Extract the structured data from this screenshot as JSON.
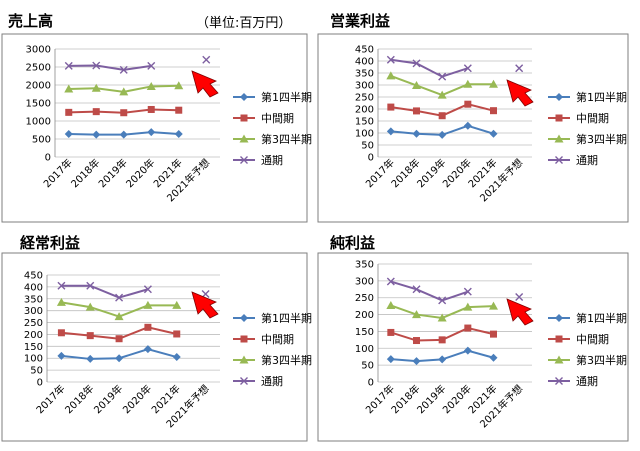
{
  "unit_label": "（単位:百万円）",
  "colors": {
    "q1": "#4a7ebb",
    "h1": "#be4b48",
    "q3": "#98b954",
    "full": "#7d5fa0",
    "arrow": "#ff0000",
    "border": "#7f7f7f",
    "grid": "#bfbfbf"
  },
  "chart_data": [
    {
      "type": "line",
      "title": "売上高",
      "categories": [
        "2017年",
        "2018年",
        "2019年",
        "2020年",
        "2021年",
        "2021年予想"
      ],
      "ylim": [
        0,
        3000
      ],
      "yticks": [
        0,
        500,
        1000,
        1500,
        2000,
        2500,
        3000
      ],
      "legend_position": "right",
      "grid": true,
      "series": [
        {
          "key": "q1",
          "name": "第1四半期",
          "marker": "diamond",
          "values": [
            640,
            620,
            620,
            690,
            640,
            null
          ]
        },
        {
          "key": "h1",
          "name": "中間期",
          "marker": "square",
          "values": [
            1240,
            1260,
            1230,
            1320,
            1300,
            null
          ]
        },
        {
          "key": "q3",
          "name": "第3四半期",
          "marker": "triangle",
          "values": [
            1890,
            1910,
            1810,
            1960,
            1980,
            null
          ]
        },
        {
          "key": "full",
          "name": "通期",
          "marker": "x",
          "values": [
            2530,
            2540,
            2420,
            2530,
            null,
            2700
          ]
        }
      ]
    },
    {
      "type": "line",
      "title": "営業利益",
      "categories": [
        "2017年",
        "2018年",
        "2019年",
        "2020年",
        "2021年",
        "2021年予想"
      ],
      "ylim": [
        0,
        450
      ],
      "yticks": [
        0,
        50,
        100,
        150,
        200,
        250,
        300,
        350,
        400,
        450
      ],
      "legend_position": "right",
      "grid": true,
      "series": [
        {
          "key": "q1",
          "name": "第1四半期",
          "marker": "diamond",
          "values": [
            107,
            97,
            92,
            130,
            97,
            null
          ]
        },
        {
          "key": "h1",
          "name": "中間期",
          "marker": "square",
          "values": [
            208,
            192,
            172,
            220,
            193,
            null
          ]
        },
        {
          "key": "q3",
          "name": "第3四半期",
          "marker": "triangle",
          "values": [
            338,
            298,
            258,
            303,
            303,
            null
          ]
        },
        {
          "key": "full",
          "name": "通期",
          "marker": "x",
          "values": [
            405,
            390,
            335,
            370,
            null,
            370
          ]
        }
      ]
    },
    {
      "type": "line",
      "title": "経常利益",
      "categories": [
        "2017年",
        "2018年",
        "2019年",
        "2020年",
        "2021年",
        "2021年予想"
      ],
      "ylim": [
        0,
        450
      ],
      "yticks": [
        0,
        50,
        100,
        150,
        200,
        250,
        300,
        350,
        400,
        450
      ],
      "legend_position": "right",
      "grid": true,
      "series": [
        {
          "key": "q1",
          "name": "第1四半期",
          "marker": "diamond",
          "values": [
            110,
            97,
            100,
            138,
            105,
            null
          ]
        },
        {
          "key": "h1",
          "name": "中間期",
          "marker": "square",
          "values": [
            207,
            195,
            182,
            230,
            202,
            null
          ]
        },
        {
          "key": "q3",
          "name": "第3四半期",
          "marker": "triangle",
          "values": [
            335,
            315,
            275,
            322,
            322,
            null
          ]
        },
        {
          "key": "full",
          "name": "通期",
          "marker": "x",
          "values": [
            405,
            405,
            355,
            390,
            null,
            370
          ]
        }
      ]
    },
    {
      "type": "line",
      "title": "純利益",
      "categories": [
        "2017年",
        "2018年",
        "2019年",
        "2020年",
        "2021年",
        "2021年予想"
      ],
      "ylim": [
        0,
        350
      ],
      "yticks": [
        0,
        50,
        100,
        150,
        200,
        250,
        300,
        350
      ],
      "legend_position": "right",
      "grid": true,
      "series": [
        {
          "key": "q1",
          "name": "第1四半期",
          "marker": "diamond",
          "values": [
            68,
            62,
            67,
            93,
            72,
            null
          ]
        },
        {
          "key": "h1",
          "name": "中間期",
          "marker": "square",
          "values": [
            147,
            123,
            125,
            160,
            142,
            null
          ]
        },
        {
          "key": "q3",
          "name": "第3四半期",
          "marker": "triangle",
          "values": [
            227,
            200,
            190,
            222,
            225,
            null
          ]
        },
        {
          "key": "full",
          "name": "通期",
          "marker": "x",
          "values": [
            298,
            275,
            242,
            268,
            null,
            252
          ]
        }
      ]
    }
  ]
}
